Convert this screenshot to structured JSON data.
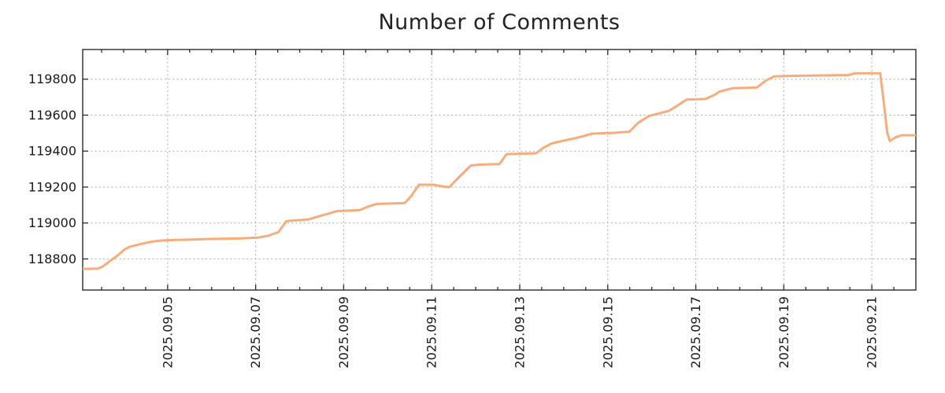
{
  "title": "Number of Comments",
  "colors": {
    "line": "#f6ad7b",
    "grid": "#ababab",
    "axis": "#2a2a2a",
    "text": "#1a1a1a",
    "background": "#ffffff"
  },
  "chart_data": {
    "type": "line",
    "title": "Number of Comments",
    "xlabel": "",
    "ylabel": "",
    "grid": "dotted",
    "legend": "none",
    "x_axis": {
      "tick_labels": [
        "2025.09.05",
        "2025.09.07",
        "2025.09.09",
        "2025.09.11",
        "2025.09.13",
        "2025.09.15",
        "2025.09.17",
        "2025.09.19",
        "2025.09.21"
      ],
      "tick_positions_days": [
        1.93,
        3.93,
        5.93,
        7.93,
        9.93,
        11.93,
        13.93,
        15.93,
        17.93
      ],
      "minor_tick_start_days": 0.43,
      "minor_tick_step_days": 0.5,
      "range_days": [
        0,
        18.93
      ]
    },
    "y_axis": {
      "tick_labels": [
        "118800",
        "119000",
        "119200",
        "119400",
        "119600",
        "119800"
      ],
      "tick_values": [
        118800,
        119000,
        119200,
        119400,
        119600,
        119800
      ],
      "range": [
        118627,
        119965
      ]
    },
    "series": [
      {
        "name": "comments",
        "points": [
          [
            0.0,
            118744
          ],
          [
            0.33,
            118746
          ],
          [
            0.45,
            118757
          ],
          [
            0.63,
            118790
          ],
          [
            0.8,
            118820
          ],
          [
            0.95,
            118852
          ],
          [
            1.07,
            118868
          ],
          [
            1.32,
            118883
          ],
          [
            1.55,
            118895
          ],
          [
            1.75,
            118902
          ],
          [
            2.1,
            118906
          ],
          [
            2.5,
            118908
          ],
          [
            2.9,
            118911
          ],
          [
            3.55,
            118914
          ],
          [
            4.0,
            118919
          ],
          [
            4.22,
            118929
          ],
          [
            4.45,
            118950
          ],
          [
            4.63,
            119011
          ],
          [
            4.8,
            119014
          ],
          [
            5.12,
            119019
          ],
          [
            5.35,
            119036
          ],
          [
            5.58,
            119052
          ],
          [
            5.78,
            119066
          ],
          [
            6.3,
            119072
          ],
          [
            6.47,
            119090
          ],
          [
            6.67,
            119106
          ],
          [
            7.32,
            119111
          ],
          [
            7.48,
            119155
          ],
          [
            7.64,
            119213
          ],
          [
            7.97,
            119213
          ],
          [
            8.15,
            119204
          ],
          [
            8.33,
            119200
          ],
          [
            8.52,
            119248
          ],
          [
            8.82,
            119320
          ],
          [
            9.05,
            119325
          ],
          [
            9.47,
            119328
          ],
          [
            9.63,
            119383
          ],
          [
            10.3,
            119388
          ],
          [
            10.48,
            119420
          ],
          [
            10.66,
            119443
          ],
          [
            11.0,
            119462
          ],
          [
            11.22,
            119473
          ],
          [
            11.58,
            119497
          ],
          [
            12.05,
            119501
          ],
          [
            12.42,
            119508
          ],
          [
            12.62,
            119557
          ],
          [
            12.87,
            119596
          ],
          [
            13.05,
            119607
          ],
          [
            13.32,
            119624
          ],
          [
            13.57,
            119662
          ],
          [
            13.72,
            119686
          ],
          [
            14.15,
            119690
          ],
          [
            14.35,
            119712
          ],
          [
            14.47,
            119731
          ],
          [
            14.63,
            119741
          ],
          [
            14.77,
            119750
          ],
          [
            15.32,
            119754
          ],
          [
            15.52,
            119792
          ],
          [
            15.7,
            119815
          ],
          [
            16.05,
            119818
          ],
          [
            16.45,
            119820
          ],
          [
            17.4,
            119823
          ],
          [
            17.55,
            119833
          ],
          [
            18.12,
            119833
          ],
          [
            18.2,
            119672
          ],
          [
            18.28,
            119500
          ],
          [
            18.34,
            119456
          ],
          [
            18.48,
            119478
          ],
          [
            18.6,
            119488
          ],
          [
            18.93,
            119488
          ]
        ]
      }
    ]
  }
}
